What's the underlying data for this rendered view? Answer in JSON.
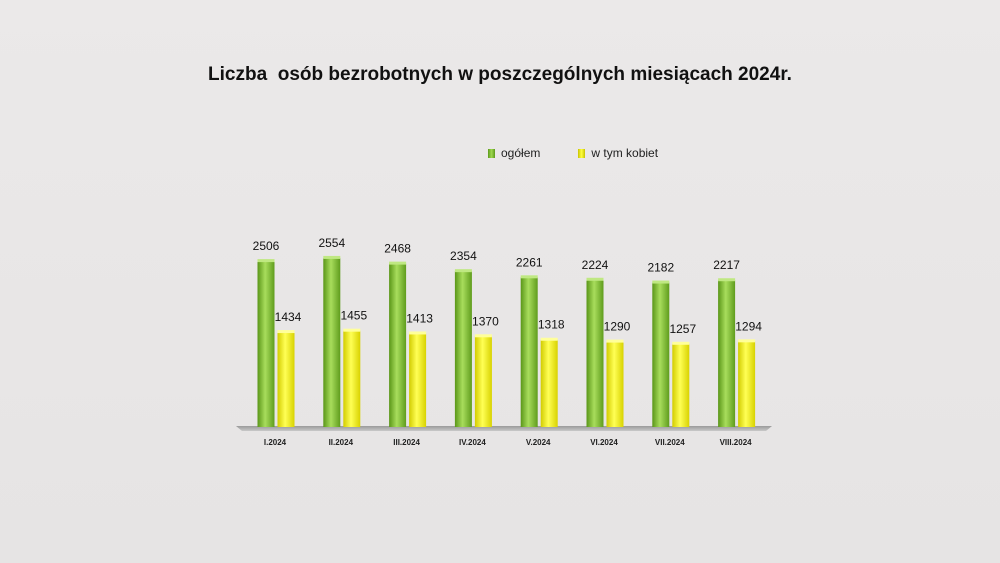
{
  "title": "Liczba  osób bezrobotnych w poszczególnych miesiącach 2024r.",
  "colors": {
    "ogolem": "#8ccb3a",
    "kobiety": "#f5f500",
    "background": "#e8e6e6"
  },
  "chart_data": {
    "type": "bar",
    "title": "Liczba  osób bezrobotnych w poszczególnych miesiącach 2024r.",
    "xlabel": "",
    "ylabel": "",
    "ylim": [
      0,
      2800
    ],
    "grid": false,
    "legend": "top-right",
    "categories": [
      "I.2024",
      "II.2024",
      "III.2024",
      "IV.2024",
      "V.2024",
      "VI.2024",
      "VII.2024",
      "VIII.2024"
    ],
    "series": [
      {
        "name": "ogółem",
        "values": [
          2506,
          2554,
          2468,
          2354,
          2261,
          2224,
          2182,
          2217
        ]
      },
      {
        "name": "w tym kobiet",
        "values": [
          1434,
          1455,
          1413,
          1370,
          1318,
          1290,
          1257,
          1294
        ]
      }
    ]
  }
}
